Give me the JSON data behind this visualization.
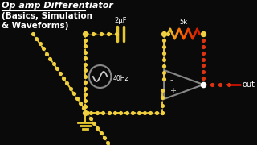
{
  "bg_color": "#0a0a0a",
  "wire_yellow": "#e8c830",
  "wire_red": "#cc1100",
  "wire_white": "#aaaaaa",
  "dot_yellow": "#f0d040",
  "dot_red": "#dd3311",
  "dot_white": "#ffffff",
  "text_color": "#ffffff",
  "title_line1": "Op amp Differentiator",
  "title_line2": "(Basics, Simulation",
  "title_line3": "& Waveforms)",
  "cap_label": "2μF",
  "res_label": "5k",
  "freq_label": "40Hz",
  "out_label": "out",
  "minus_label": "-",
  "plus_label": "+",
  "figsize": [
    3.2,
    1.8
  ],
  "dpi": 100
}
